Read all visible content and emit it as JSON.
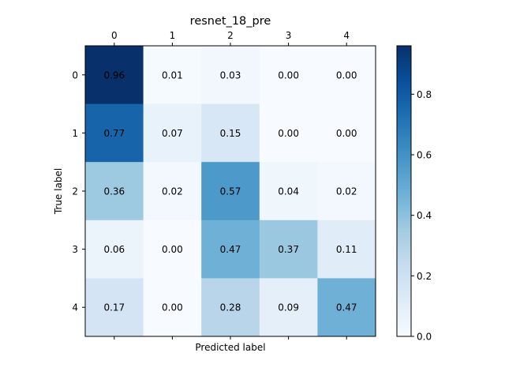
{
  "chart_data": {
    "type": "heatmap",
    "title": "resnet_18_pre",
    "xlabel": "Predicted label",
    "ylabel": "True label",
    "x_categories": [
      "0",
      "1",
      "2",
      "3",
      "4"
    ],
    "y_categories": [
      "0",
      "1",
      "2",
      "3",
      "4"
    ],
    "values": [
      [
        0.96,
        0.01,
        0.03,
        0.0,
        0.0
      ],
      [
        0.77,
        0.07,
        0.15,
        0.0,
        0.0
      ],
      [
        0.36,
        0.02,
        0.57,
        0.04,
        0.02
      ],
      [
        0.06,
        0.0,
        0.47,
        0.37,
        0.11
      ],
      [
        0.17,
        0.0,
        0.28,
        0.09,
        0.47
      ]
    ],
    "cell_labels": [
      [
        "0.96",
        "0.01",
        "0.03",
        "0.00",
        "0.00"
      ],
      [
        "0.77",
        "0.07",
        "0.15",
        "0.00",
        "0.00"
      ],
      [
        "0.36",
        "0.02",
        "0.57",
        "0.04",
        "0.02"
      ],
      [
        "0.06",
        "0.00",
        "0.47",
        "0.37",
        "0.11"
      ],
      [
        "0.17",
        "0.00",
        "0.28",
        "0.09",
        "0.47"
      ]
    ],
    "colormap": "Blues",
    "colorbar": {
      "range": [
        0,
        0.96
      ],
      "ticks": [
        0.0,
        0.2,
        0.4,
        0.6,
        0.8
      ],
      "tick_labels": [
        "0.0",
        "0.2",
        "0.4",
        "0.6",
        "0.8"
      ]
    },
    "x_axis_position": "top",
    "grid": false
  }
}
